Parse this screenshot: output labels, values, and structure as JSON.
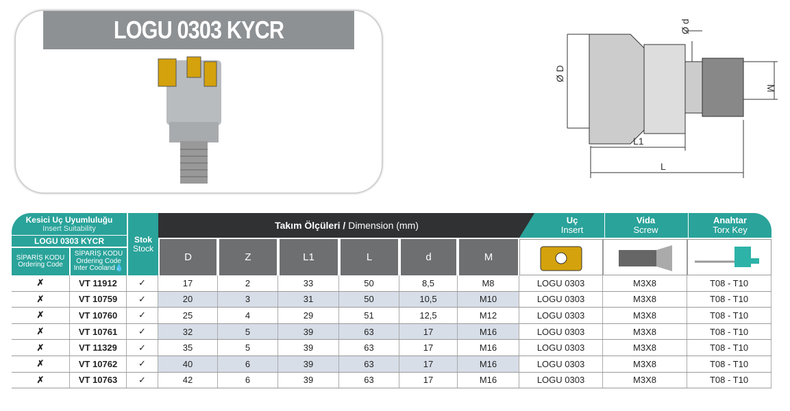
{
  "title": "LOGU 0303 KYCR",
  "table": {
    "insert_suitability_tr": "Kesici Uç Uyumluluğu",
    "insert_suitability_en": "Insert Suitability",
    "model": "LOGU 0303 KYCR",
    "order_code_tr": "SİPARİŞ KODU",
    "order_code_en": "Ordering Code",
    "order_code2_tr": "SİPARİŞ KODU",
    "order_code2_en": "Ordering Code",
    "order_code2_note": "Inter Cooland",
    "stock_tr": "Stok",
    "stock_en": "Stock",
    "dimension_tr": "Takım Ölçüleri /",
    "dimension_en": "Dimension (mm)",
    "dim_cols": [
      "D",
      "Z",
      "L1",
      "L",
      "d",
      "M"
    ],
    "insert_tr": "Uç",
    "insert_en": "Insert",
    "screw_tr": "Vida",
    "screw_en": "Screw",
    "key_tr": "Anahtar",
    "key_en": "Torx Key",
    "rows": [
      {
        "code1": "✗",
        "code2": "VT 11912",
        "stock": "✓",
        "D": "17",
        "Z": "2",
        "L1": "33",
        "L": "50",
        "d": "8,5",
        "M": "M8",
        "insert": "LOGU 0303",
        "screw": "M3X8",
        "key": "T08 - T10"
      },
      {
        "code1": "✗",
        "code2": "VT 10759",
        "stock": "✓",
        "D": "20",
        "Z": "3",
        "L1": "31",
        "L": "50",
        "d": "10,5",
        "M": "M10",
        "insert": "LOGU 0303",
        "screw": "M3X8",
        "key": "T08 - T10"
      },
      {
        "code1": "✗",
        "code2": "VT 10760",
        "stock": "✓",
        "D": "25",
        "Z": "4",
        "L1": "29",
        "L": "51",
        "d": "12,5",
        "M": "M12",
        "insert": "LOGU 0303",
        "screw": "M3X8",
        "key": "T08 - T10"
      },
      {
        "code1": "✗",
        "code2": "VT 10761",
        "stock": "✓",
        "D": "32",
        "Z": "5",
        "L1": "39",
        "L": "63",
        "d": "17",
        "M": "M16",
        "insert": "LOGU 0303",
        "screw": "M3X8",
        "key": "T08 - T10"
      },
      {
        "code1": "✗",
        "code2": "VT 11329",
        "stock": "✓",
        "D": "35",
        "Z": "5",
        "L1": "39",
        "L": "63",
        "d": "17",
        "M": "M16",
        "insert": "LOGU 0303",
        "screw": "M3X8",
        "key": "T08 - T10"
      },
      {
        "code1": "✗",
        "code2": "VT 10762",
        "stock": "✓",
        "D": "40",
        "Z": "6",
        "L1": "39",
        "L": "63",
        "d": "17",
        "M": "M16",
        "insert": "LOGU 0303",
        "screw": "M3X8",
        "key": "T08 - T10"
      },
      {
        "code1": "✗",
        "code2": "VT 10763",
        "stock": "✓",
        "D": "42",
        "Z": "6",
        "L1": "39",
        "L": "63",
        "d": "17",
        "M": "M16",
        "insert": "LOGU 0303",
        "screw": "M3X8",
        "key": "T08 - T10"
      }
    ]
  },
  "drawing": {
    "labels": {
      "D": "Ø D",
      "d": "Ø d",
      "M": "M",
      "L1": "L1",
      "L": "L"
    }
  },
  "colors": {
    "teal": "#2aa39a",
    "dark": "#2f3133",
    "gray": "#6d6f71",
    "shade": "#d7dee8",
    "title_band": "#8d9194"
  }
}
